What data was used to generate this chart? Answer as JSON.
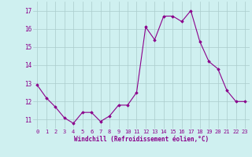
{
  "x": [
    0,
    1,
    2,
    3,
    4,
    5,
    6,
    7,
    8,
    9,
    10,
    11,
    12,
    13,
    14,
    15,
    16,
    17,
    18,
    19,
    20,
    21,
    22,
    23
  ],
  "y": [
    12.9,
    12.2,
    11.7,
    11.1,
    10.8,
    11.4,
    11.4,
    10.9,
    11.2,
    11.8,
    11.8,
    12.5,
    16.1,
    15.4,
    16.7,
    16.7,
    16.4,
    17.0,
    15.3,
    14.2,
    13.8,
    12.6,
    12.0,
    12.0
  ],
  "line_color": "#8B008B",
  "marker": "D",
  "marker_size": 1.8,
  "bg_color": "#cff0f0",
  "grid_color": "#aacccc",
  "xlabel": "Windchill (Refroidissement éolien,°C)",
  "ylim": [
    10.5,
    17.5
  ],
  "xlim": [
    -0.5,
    23.5
  ],
  "yticks": [
    11,
    12,
    13,
    14,
    15,
    16,
    17
  ],
  "xticks": [
    0,
    1,
    2,
    3,
    4,
    5,
    6,
    7,
    8,
    9,
    10,
    11,
    12,
    13,
    14,
    15,
    16,
    17,
    18,
    19,
    20,
    21,
    22,
    23
  ],
  "tick_fontsize": 5.0,
  "xlabel_fontsize": 5.5
}
